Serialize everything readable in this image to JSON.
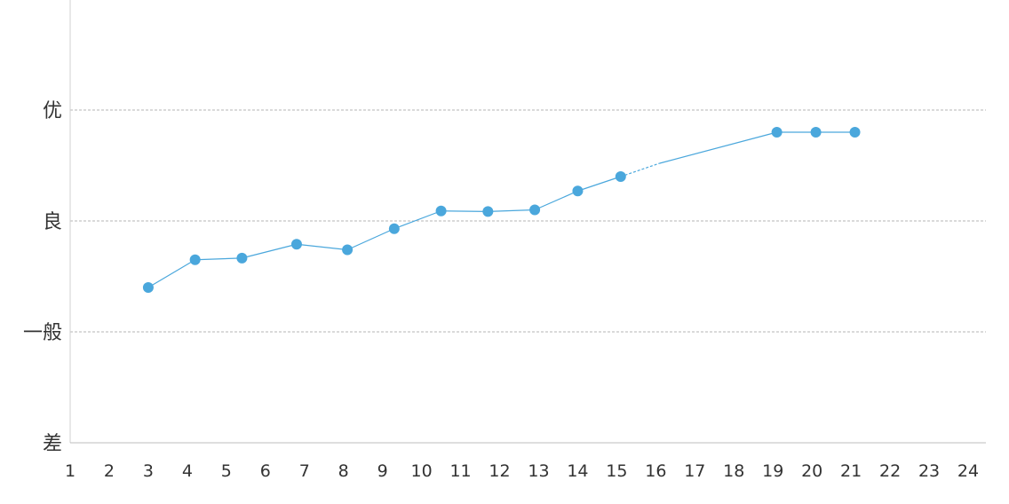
{
  "chart_data": {
    "type": "line",
    "title": "",
    "xlabel": "",
    "ylabel": "",
    "x_ticks": [
      "1",
      "2",
      "3",
      "4",
      "5",
      "6",
      "7",
      "8",
      "9",
      "10",
      "11",
      "12",
      "13",
      "14",
      "15",
      "16",
      "17",
      "18",
      "19",
      "20",
      "21",
      "22",
      "23",
      "24"
    ],
    "y_ticks": [
      "差",
      "一般",
      "良",
      "优"
    ],
    "ylim": [
      0,
      3
    ],
    "grid": "horizontal dashed",
    "series": [
      {
        "color": "#4aa7dc",
        "points": [
          {
            "x": 3,
            "y": 1.4
          },
          {
            "x": 4.2,
            "y": 1.65
          },
          {
            "x": 5.4,
            "y": 1.665
          },
          {
            "x": 6.8,
            "y": 1.79
          },
          {
            "x": 8.1,
            "y": 1.74
          },
          {
            "x": 9.3,
            "y": 1.93
          },
          {
            "x": 10.5,
            "y": 2.09
          },
          {
            "x": 11.7,
            "y": 2.085
          },
          {
            "x": 12.9,
            "y": 2.1
          },
          {
            "x": 14.0,
            "y": 2.27
          },
          {
            "x": 15.1,
            "y": 2.4
          },
          {
            "x": 16.1,
            "y": 2.52
          },
          {
            "x": 19.1,
            "y": 2.8
          },
          {
            "x": 20.1,
            "y": 2.8
          },
          {
            "x": 21.1,
            "y": 2.8
          }
        ],
        "dashed_segment_between_points": [
          10,
          11
        ]
      }
    ]
  }
}
